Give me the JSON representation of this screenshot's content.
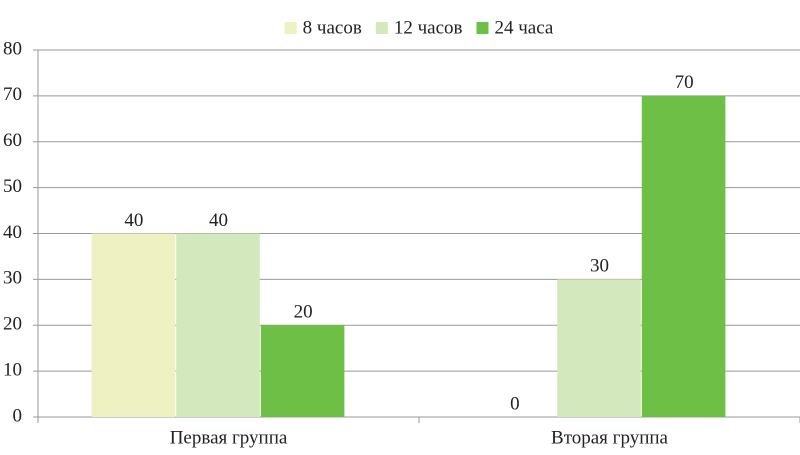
{
  "chart_data": {
    "type": "bar",
    "categories": [
      "Первая группа",
      "Вторая группа"
    ],
    "series": [
      {
        "name": "8 часов",
        "color": "#eef2c2",
        "values": [
          40,
          0
        ]
      },
      {
        "name": "12 часов",
        "color": "#d3e8bd",
        "values": [
          40,
          30
        ]
      },
      {
        "name": "24 часа",
        "color": "#6dbf45",
        "values": [
          20,
          70
        ]
      }
    ],
    "ylim": [
      0,
      80
    ],
    "yticks": [
      0,
      10,
      20,
      30,
      40,
      50,
      60,
      70,
      80
    ],
    "grid": true,
    "legend": "top",
    "data_labels": true
  }
}
